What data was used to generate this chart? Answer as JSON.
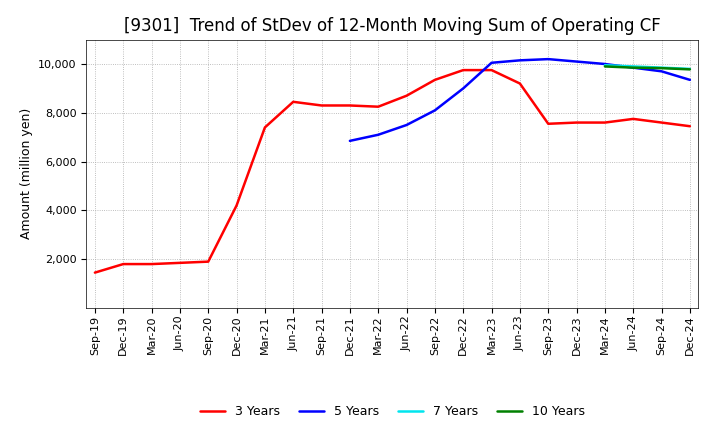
{
  "title": "[9301]  Trend of StDev of 12-Month Moving Sum of Operating CF",
  "ylabel": "Amount (million yen)",
  "ylim": [
    0,
    11000
  ],
  "yticks": [
    2000,
    4000,
    6000,
    8000,
    10000
  ],
  "background_color": "#ffffff",
  "grid_color": "#aaaaaa",
  "series": {
    "3 Years": {
      "color": "#ff0000",
      "dates": [
        "Sep-19",
        "Dec-19",
        "Mar-20",
        "Jun-20",
        "Sep-20",
        "Dec-20",
        "Mar-21",
        "Jun-21",
        "Sep-21",
        "Dec-21",
        "Mar-22",
        "Jun-22",
        "Sep-22",
        "Dec-22",
        "Mar-23",
        "Jun-23",
        "Sep-23",
        "Dec-23",
        "Mar-24",
        "Jun-24",
        "Sep-24",
        "Dec-24"
      ],
      "values": [
        1450,
        1800,
        1800,
        1850,
        1900,
        4200,
        7400,
        8450,
        8300,
        8300,
        8250,
        8700,
        9350,
        9750,
        9750,
        9200,
        7550,
        7600,
        7600,
        7750,
        7600,
        7450
      ]
    },
    "5 Years": {
      "color": "#0000ff",
      "dates": [
        "Dec-21",
        "Mar-22",
        "Jun-22",
        "Sep-22",
        "Dec-22",
        "Mar-23",
        "Jun-23",
        "Sep-23",
        "Dec-23",
        "Mar-24",
        "Jun-24",
        "Sep-24",
        "Dec-24"
      ],
      "values": [
        6850,
        7100,
        7500,
        8100,
        9000,
        10050,
        10150,
        10200,
        10100,
        10000,
        9850,
        9700,
        9350
      ]
    },
    "7 Years": {
      "color": "#00e5ee",
      "dates": [
        "Mar-24",
        "Jun-24",
        "Sep-24",
        "Dec-24"
      ],
      "values": [
        9950,
        9900,
        9850,
        9800
      ]
    },
    "10 Years": {
      "color": "#008000",
      "dates": [
        "Mar-24",
        "Jun-24",
        "Sep-24",
        "Dec-24"
      ],
      "values": [
        9900,
        9850,
        9830,
        9780
      ]
    }
  },
  "xtick_labels": [
    "Sep-19",
    "Dec-19",
    "Mar-20",
    "Jun-20",
    "Sep-20",
    "Dec-20",
    "Mar-21",
    "Jun-21",
    "Sep-21",
    "Dec-21",
    "Mar-22",
    "Jun-22",
    "Sep-22",
    "Dec-22",
    "Mar-23",
    "Jun-23",
    "Sep-23",
    "Dec-23",
    "Mar-24",
    "Jun-24",
    "Sep-24",
    "Dec-24"
  ],
  "title_fontsize": 12,
  "label_fontsize": 9,
  "tick_fontsize": 8,
  "legend_fontsize": 9
}
